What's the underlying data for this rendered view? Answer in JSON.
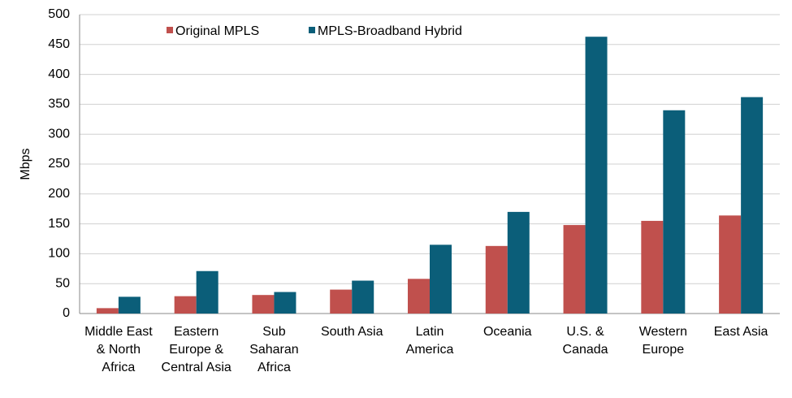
{
  "chart_data": {
    "type": "bar",
    "y_label": "Mbps",
    "categories": [
      "Middle East & North Africa",
      "Eastern Europe & Central Asia",
      "Sub Saharan Africa",
      "South Asia",
      "Latin America",
      "Oceania",
      "U.S. & Canada",
      "Western Europe",
      "East Asia"
    ],
    "series": [
      {
        "name": "Original MPLS",
        "color": "#c0504d",
        "values": [
          9,
          29,
          31,
          40,
          58,
          113,
          148,
          155,
          164
        ]
      },
      {
        "name": "MPLS-Broadband Hybrid",
        "color": "#0b5e79",
        "values": [
          28,
          71,
          36,
          55,
          115,
          170,
          463,
          340,
          362
        ]
      }
    ],
    "ylim": [
      0,
      500
    ],
    "yticks": [
      0,
      50,
      100,
      150,
      200,
      250,
      300,
      350,
      400,
      450,
      500
    ],
    "grid": true,
    "legend": "top"
  }
}
